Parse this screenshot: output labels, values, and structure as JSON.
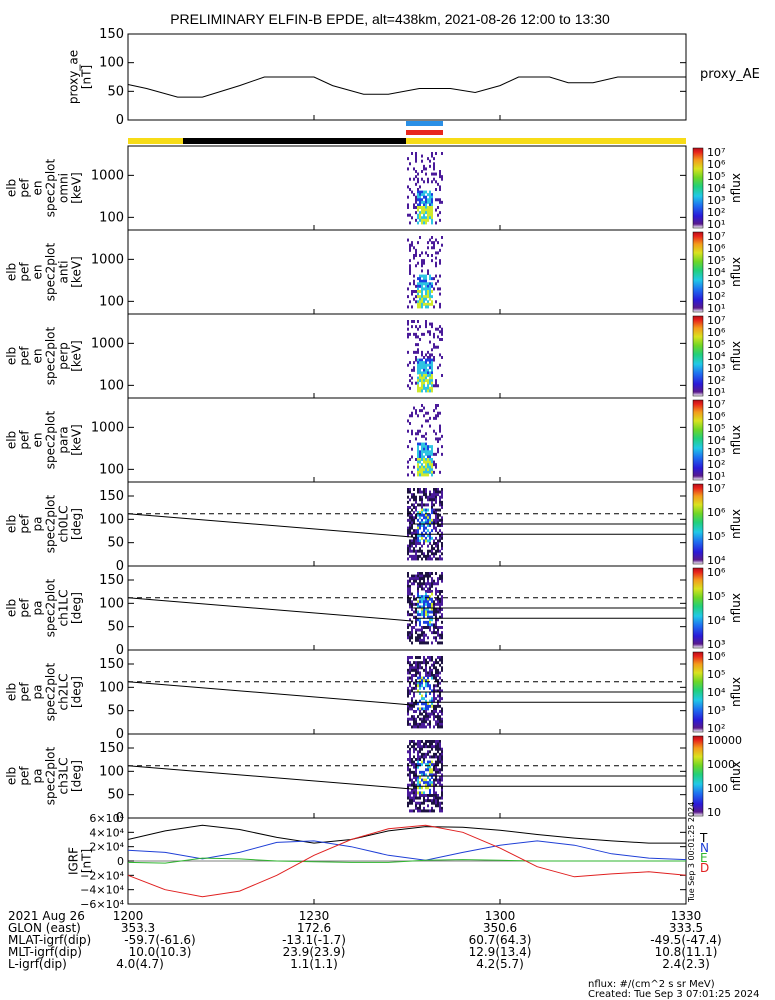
{
  "title": "PRELIMINARY ELFIN-B EPDE, alt=438km, 2021-08-26 12:00 to 13:30",
  "colors": {
    "spec_bright": "#cfe92c",
    "spec_cyan": "#2ec4e2",
    "spec_blue": "#1a3fe0",
    "spec_purple": "#4a1a9a",
    "spec_dark": "#1c1240",
    "bar_yellow": "#f7dc17",
    "bar_black": "#000000",
    "marker_blue": "#2a8fe6",
    "marker_red": "#e8261b",
    "grf_t": "#000000",
    "grf_n": "#1f3fd6",
    "grf_e": "#2fb52f",
    "grf_d": "#e02020"
  },
  "chart_data": [
    {
      "type": "line",
      "panel": "proxy_ae",
      "ylabel": [
        "proxy_ae",
        "[nT]"
      ],
      "legend": "proxy_AE",
      "ylim": [
        0,
        150
      ],
      "yticks": [
        "150",
        "100",
        "50",
        "0"
      ],
      "xlim": [
        0,
        90
      ],
      "x": [
        0,
        3,
        8,
        12,
        18,
        22,
        27,
        30,
        33,
        38,
        42,
        47,
        52,
        56,
        60,
        63,
        68,
        71,
        75,
        79,
        84,
        90
      ],
      "values": [
        62,
        55,
        40,
        40,
        60,
        75,
        75,
        75,
        60,
        45,
        45,
        55,
        55,
        48,
        60,
        75,
        75,
        65,
        65,
        75,
        75,
        75
      ]
    },
    {
      "type": "heatmap",
      "panel": "omni",
      "ylabel": [
        "elb",
        "pef",
        "en",
        "spec2plot",
        "omni",
        "[keV]"
      ],
      "yscale": "log",
      "yticks": [
        "1000",
        "100"
      ],
      "colorbar": {
        "label": "nflux",
        "ticks": [
          "10⁷",
          "10⁶",
          "10⁵",
          "10⁴",
          "10³",
          "10²",
          "10¹"
        ]
      }
    },
    {
      "type": "heatmap",
      "panel": "anti",
      "ylabel": [
        "elb",
        "pef",
        "en",
        "spec2plot",
        "anti",
        "[keV]"
      ],
      "yscale": "log",
      "yticks": [
        "1000",
        "100"
      ],
      "colorbar": {
        "label": "nflux",
        "ticks": [
          "10⁷",
          "10⁶",
          "10⁵",
          "10⁴",
          "10³",
          "10²",
          "10¹"
        ]
      }
    },
    {
      "type": "heatmap",
      "panel": "perp",
      "ylabel": [
        "elb",
        "pef",
        "en",
        "spec2plot",
        "perp",
        "[keV]"
      ],
      "yscale": "log",
      "yticks": [
        "1000",
        "100"
      ],
      "colorbar": {
        "label": "nflux",
        "ticks": [
          "10⁷",
          "10⁶",
          "10⁵",
          "10⁴",
          "10³",
          "10²",
          "10¹"
        ]
      }
    },
    {
      "type": "heatmap",
      "panel": "para",
      "ylabel": [
        "elb",
        "pef",
        "en",
        "spec2plot",
        "para",
        "[keV]"
      ],
      "yscale": "log",
      "yticks": [
        "1000",
        "100"
      ],
      "colorbar": {
        "label": "nflux",
        "ticks": [
          "10⁷",
          "10⁶",
          "10⁵",
          "10⁴",
          "10³",
          "10²",
          "10¹"
        ]
      }
    },
    {
      "type": "heatmap",
      "panel": "ch0LC",
      "ylabel": [
        "elb",
        "pef",
        "pa",
        "spec2plot",
        "ch0LC",
        "[deg]"
      ],
      "ylim": [
        0,
        180
      ],
      "yticks": [
        "150",
        "100",
        "50",
        "0"
      ],
      "colorbar": {
        "label": "nflux",
        "ticks": [
          "10⁷",
          "10⁶",
          "10⁵",
          "10⁴"
        ]
      }
    },
    {
      "type": "heatmap",
      "panel": "ch1LC",
      "ylabel": [
        "elb",
        "pef",
        "pa",
        "spec2plot",
        "ch1LC",
        "[deg]"
      ],
      "ylim": [
        0,
        180
      ],
      "yticks": [
        "150",
        "100",
        "50",
        "0"
      ],
      "colorbar": {
        "label": "nflux",
        "ticks": [
          "10⁶",
          "10⁵",
          "10⁴",
          "10³"
        ]
      }
    },
    {
      "type": "heatmap",
      "panel": "ch2LC",
      "ylabel": [
        "elb",
        "pef",
        "pa",
        "spec2plot",
        "ch2LC",
        "[deg]"
      ],
      "ylim": [
        0,
        180
      ],
      "yticks": [
        "150",
        "100",
        "50",
        "0"
      ],
      "colorbar": {
        "label": "nflux",
        "ticks": [
          "10⁶",
          "10⁵",
          "10⁴",
          "10³",
          "10²"
        ]
      }
    },
    {
      "type": "heatmap",
      "panel": "ch3LC",
      "ylabel": [
        "elb",
        "pef",
        "pa",
        "spec2plot",
        "ch3LC",
        "[deg]"
      ],
      "ylim": [
        0,
        180
      ],
      "yticks": [
        "150",
        "100",
        "50",
        "0"
      ],
      "colorbar": {
        "label": "nflux",
        "ticks": [
          "10000",
          "1000",
          "100",
          "10"
        ]
      }
    },
    {
      "type": "line",
      "panel": "igrf",
      "ylabel": [
        "IGRF",
        "[nT]"
      ],
      "ylim": [
        -60000,
        60000
      ],
      "yticks": [
        "6×10⁴",
        "4×10⁴",
        "2×10⁴",
        "0",
        "−2×10⁴",
        "−4×10⁴",
        "−6×10⁴"
      ],
      "side_text": "Tue Sep  3 00:01:25 2024",
      "series": [
        {
          "name": "T",
          "x": [
            0,
            6,
            12,
            18,
            24,
            30,
            36,
            42,
            48,
            54,
            60,
            66,
            72,
            78,
            84,
            90
          ],
          "values": [
            30000,
            42000,
            50000,
            44000,
            33000,
            25000,
            30000,
            42000,
            48000,
            47000,
            43000,
            37000,
            32000,
            28000,
            25000,
            25000
          ]
        },
        {
          "name": "N",
          "x": [
            0,
            6,
            12,
            18,
            24,
            30,
            36,
            42,
            48,
            54,
            60,
            66,
            72,
            78,
            84,
            90
          ],
          "values": [
            15000,
            12000,
            3000,
            12000,
            26000,
            28000,
            20000,
            8000,
            1000,
            12000,
            22000,
            28000,
            22000,
            10000,
            4000,
            2000
          ]
        },
        {
          "name": "E",
          "x": [
            0,
            6,
            12,
            18,
            24,
            30,
            36,
            42,
            48,
            54,
            60,
            66,
            72,
            78,
            84,
            90
          ],
          "values": [
            -2000,
            -3000,
            4000,
            3000,
            0,
            -1000,
            -2000,
            -2000,
            1000,
            2000,
            1000,
            0,
            0,
            0,
            0,
            0
          ]
        },
        {
          "name": "D",
          "x": [
            0,
            6,
            12,
            18,
            24,
            30,
            36,
            42,
            48,
            54,
            60,
            66,
            72,
            78,
            84,
            90
          ],
          "values": [
            -20000,
            -40000,
            -50000,
            -42000,
            -20000,
            8000,
            30000,
            45000,
            50000,
            40000,
            18000,
            -8000,
            -22000,
            -18000,
            -15000,
            -20000
          ]
        }
      ]
    }
  ],
  "footer": {
    "date": "2021 Aug 26",
    "row_labels": [
      "GLON (east)",
      "MLAT-igrf(dip)",
      "MLT-igrf(dip)",
      "L-igrf(dip)"
    ],
    "times": [
      "1200",
      "1230",
      "1300",
      "1330"
    ],
    "glon": [
      "353.3",
      "172.6",
      "350.6",
      "333.5"
    ],
    "mlat": [
      "-59.7(-61.6)",
      "-13.1(-1.7)",
      "60.7(64.3)",
      "-49.5(-47.4)"
    ],
    "mlt": [
      "10.0(10.3)",
      "23.9(23.9)",
      "12.9(13.4)",
      "10.8(11.1)"
    ],
    "lval": [
      "4.0(4.7)",
      "1.1(1.1)",
      "4.2(5.7)",
      "2.4(2.3)"
    ],
    "units_note": "nflux: #/(cm^2 s sr MeV)",
    "created": "Created: Tue Sep  3 07:01:25 2024"
  }
}
